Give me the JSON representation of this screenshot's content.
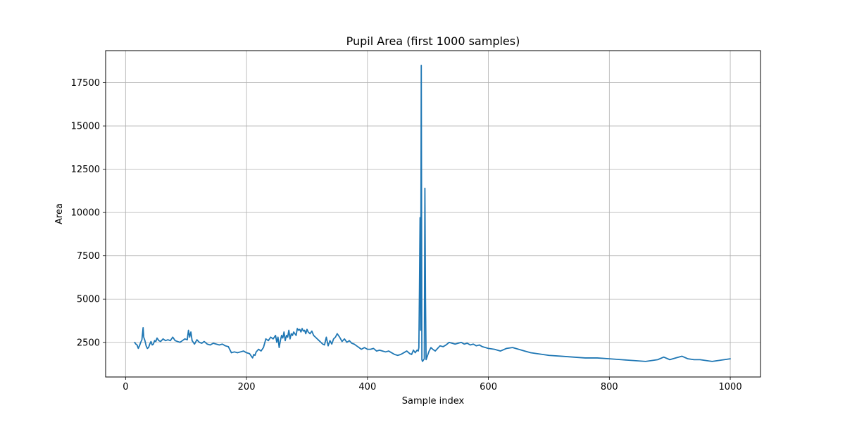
{
  "chart_data": {
    "type": "line",
    "title": "Pupil Area (first 1000 samples)",
    "xlabel": "Sample index",
    "ylabel": "Area",
    "xlim": [
      -33,
      1050
    ],
    "ylim": [
      500,
      19350
    ],
    "xticks": [
      0,
      200,
      400,
      600,
      800,
      1000
    ],
    "yticks": [
      2500,
      5000,
      7500,
      10000,
      12500,
      15000,
      17500
    ],
    "grid": true,
    "colors": {
      "line": "#1f77b4",
      "grid": "#b0b0b0",
      "axes": "#000000"
    },
    "series": [
      {
        "x": [
          15,
          17,
          19,
          21,
          23,
          25,
          27,
          29,
          30,
          32,
          34,
          36,
          38,
          40,
          42,
          44,
          46,
          48,
          50,
          52,
          55,
          58,
          62,
          66,
          70,
          74,
          78,
          82,
          86,
          90,
          94,
          98,
          102,
          104,
          106,
          108,
          110,
          114,
          118,
          122,
          126,
          130,
          135,
          140,
          145,
          150,
          155,
          160,
          165,
          170,
          175,
          180,
          185,
          190,
          195,
          200,
          205,
          210,
          212,
          214,
          216,
          220,
          224,
          228,
          232,
          236,
          240,
          244,
          248,
          250,
          252,
          254,
          256,
          258,
          260,
          262,
          264,
          266,
          268,
          270,
          272,
          274,
          276,
          278,
          280,
          282,
          284,
          286,
          288,
          290,
          292,
          294,
          296,
          298,
          300,
          302,
          305,
          308,
          311,
          314,
          317,
          320,
          323,
          326,
          329,
          332,
          335,
          338,
          341,
          344,
          347,
          350,
          354,
          358,
          362,
          366,
          370,
          374,
          378,
          382,
          386,
          390,
          395,
          400,
          405,
          410,
          415,
          420,
          425,
          430,
          435,
          440,
          445,
          450,
          455,
          460,
          465,
          470,
          473,
          476,
          479,
          482,
          484,
          485,
          486,
          487,
          488,
          489,
          490,
          491,
          492,
          493,
          494,
          495,
          496,
          497,
          498,
          499,
          500,
          502,
          505,
          508,
          512,
          516,
          520,
          525,
          530,
          535,
          540,
          545,
          550,
          555,
          560,
          565,
          570,
          575,
          580,
          585,
          590,
          595,
          600,
          610,
          620,
          630,
          640,
          650,
          660,
          670,
          680,
          690,
          700,
          720,
          740,
          760,
          780,
          800,
          820,
          840,
          860,
          870,
          880,
          890,
          900,
          910,
          920,
          930,
          940,
          950,
          960,
          970,
          980,
          990,
          1000
        ],
        "y": [
          2500,
          2400,
          2350,
          2150,
          2300,
          2500,
          2650,
          3350,
          2800,
          2600,
          2300,
          2150,
          2200,
          2400,
          2550,
          2350,
          2400,
          2600,
          2550,
          2750,
          2600,
          2550,
          2700,
          2600,
          2650,
          2600,
          2800,
          2600,
          2550,
          2500,
          2600,
          2700,
          2650,
          3200,
          2800,
          3100,
          2600,
          2400,
          2650,
          2500,
          2450,
          2550,
          2400,
          2350,
          2450,
          2400,
          2350,
          2400,
          2300,
          2250,
          1900,
          1950,
          1900,
          1950,
          2000,
          1900,
          1850,
          1600,
          1800,
          1750,
          1950,
          2100,
          2000,
          2200,
          2700,
          2600,
          2800,
          2700,
          2900,
          2500,
          2800,
          2200,
          2600,
          2900,
          2750,
          3100,
          2600,
          2900,
          2800,
          3200,
          2700,
          3000,
          2900,
          3100,
          3000,
          2900,
          3300,
          3200,
          3250,
          3100,
          3300,
          3150,
          3200,
          3000,
          3250,
          3100,
          3000,
          3150,
          2900,
          2800,
          2700,
          2600,
          2500,
          2400,
          2350,
          2800,
          2300,
          2600,
          2400,
          2700,
          2800,
          3000,
          2800,
          2550,
          2700,
          2500,
          2600,
          2450,
          2400,
          2300,
          2200,
          2100,
          2200,
          2100,
          2100,
          2150,
          2000,
          2050,
          2000,
          1950,
          2000,
          1900,
          1800,
          1750,
          1800,
          1900,
          2000,
          1850,
          1800,
          2050,
          1900,
          2050,
          2000,
          2200,
          5500,
          9700,
          3200,
          18500,
          1500,
          1400,
          1450,
          1500,
          1550,
          11400,
          5000,
          1500,
          1600,
          1700,
          1800,
          2000,
          2200,
          2100,
          2000,
          2150,
          2300,
          2250,
          2350,
          2500,
          2450,
          2400,
          2450,
          2500,
          2400,
          2450,
          2350,
          2400,
          2300,
          2350,
          2250,
          2200,
          2150,
          2100,
          2000,
          2150,
          2200,
          2100,
          2000,
          1900,
          1850,
          1800,
          1750,
          1700,
          1650,
          1600,
          1600,
          1550,
          1500,
          1450,
          1400,
          1450,
          1500,
          1650,
          1500,
          1600,
          1700,
          1550,
          1500,
          1500,
          1450,
          1400,
          1450,
          1500,
          1550
        ]
      }
    ]
  }
}
